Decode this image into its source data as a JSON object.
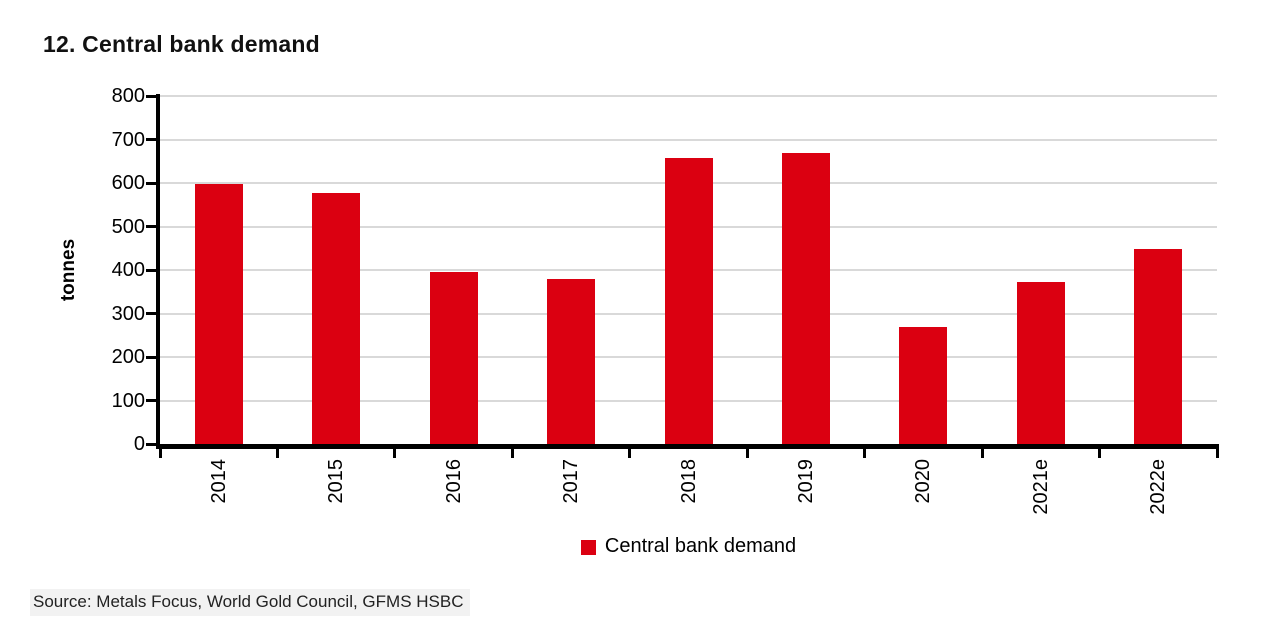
{
  "title": "12. Central bank demand",
  "legend": {
    "label": "Central bank demand"
  },
  "source": "Source: Metals Focus, World Gold Council, GFMS HSBC",
  "colors": {
    "bar": "#db0011",
    "gridline": "#d9d9d9",
    "axis": "#000000",
    "source_background": "#f2f2f2"
  },
  "chart_data": {
    "type": "bar",
    "title": "12. Central bank demand",
    "series_name": "Central bank demand",
    "categories": [
      "2014",
      "2015",
      "2016",
      "2017",
      "2018",
      "2019",
      "2020",
      "2021e",
      "2022e"
    ],
    "values": [
      598,
      577,
      396,
      380,
      658,
      668,
      270,
      373,
      448
    ],
    "xlabel": "",
    "ylabel": "tonnes",
    "ylim": [
      0,
      800
    ],
    "yticks": [
      0,
      100,
      200,
      300,
      400,
      500,
      600,
      700,
      800
    ],
    "grid": "horizontal",
    "legend_position": "bottom-center",
    "bar_color": "#db0011"
  }
}
